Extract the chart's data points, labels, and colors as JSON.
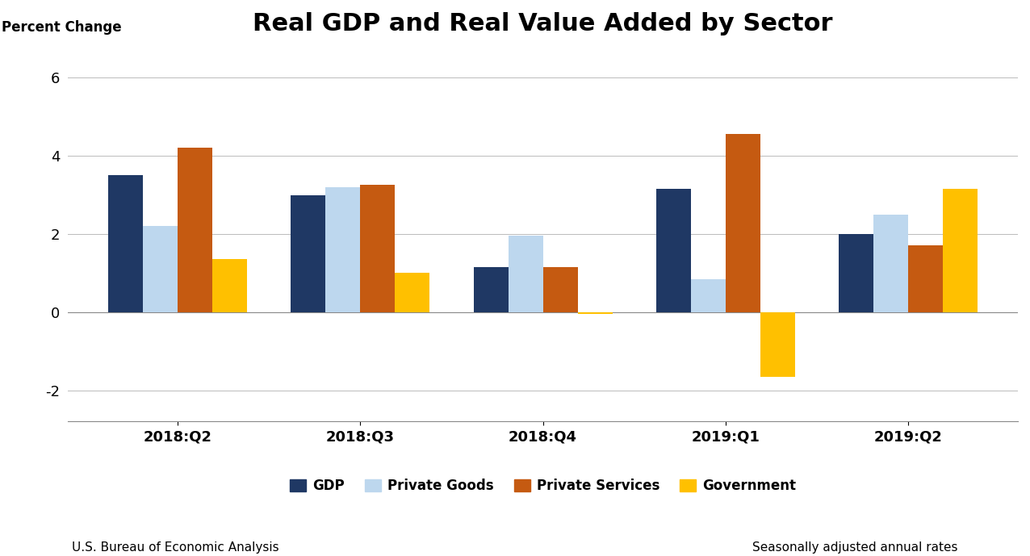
{
  "title": "Real GDP and Real Value Added by Sector",
  "ylabel": "Percent Change",
  "categories": [
    "2018:Q2",
    "2018:Q3",
    "2018:Q4",
    "2019:Q1",
    "2019:Q2"
  ],
  "series_order": [
    "GDP",
    "Private Goods",
    "Private Services",
    "Government"
  ],
  "series": {
    "GDP": [
      3.5,
      3.0,
      1.15,
      3.15,
      2.0
    ],
    "Private Goods": [
      2.2,
      3.2,
      1.95,
      0.85,
      2.5
    ],
    "Private Services": [
      4.2,
      3.25,
      1.15,
      4.55,
      1.7
    ],
    "Government": [
      1.35,
      1.0,
      -0.05,
      -1.65,
      3.15
    ]
  },
  "colors": {
    "GDP": "#1F3864",
    "Private Goods": "#BDD7EE",
    "Private Services": "#C55A11",
    "Government": "#FFC000"
  },
  "ylim": [
    -2.8,
    6.8
  ],
  "yticks": [
    -2,
    0,
    2,
    4,
    6
  ],
  "footnote_left": "U.S. Bureau of Economic Analysis",
  "footnote_right": "Seasonally adjusted annual rates",
  "background_color": "#FFFFFF",
  "bar_width": 0.19,
  "title_fontsize": 22,
  "label_fontsize": 12,
  "tick_fontsize": 13,
  "legend_fontsize": 12,
  "footnote_fontsize": 11
}
